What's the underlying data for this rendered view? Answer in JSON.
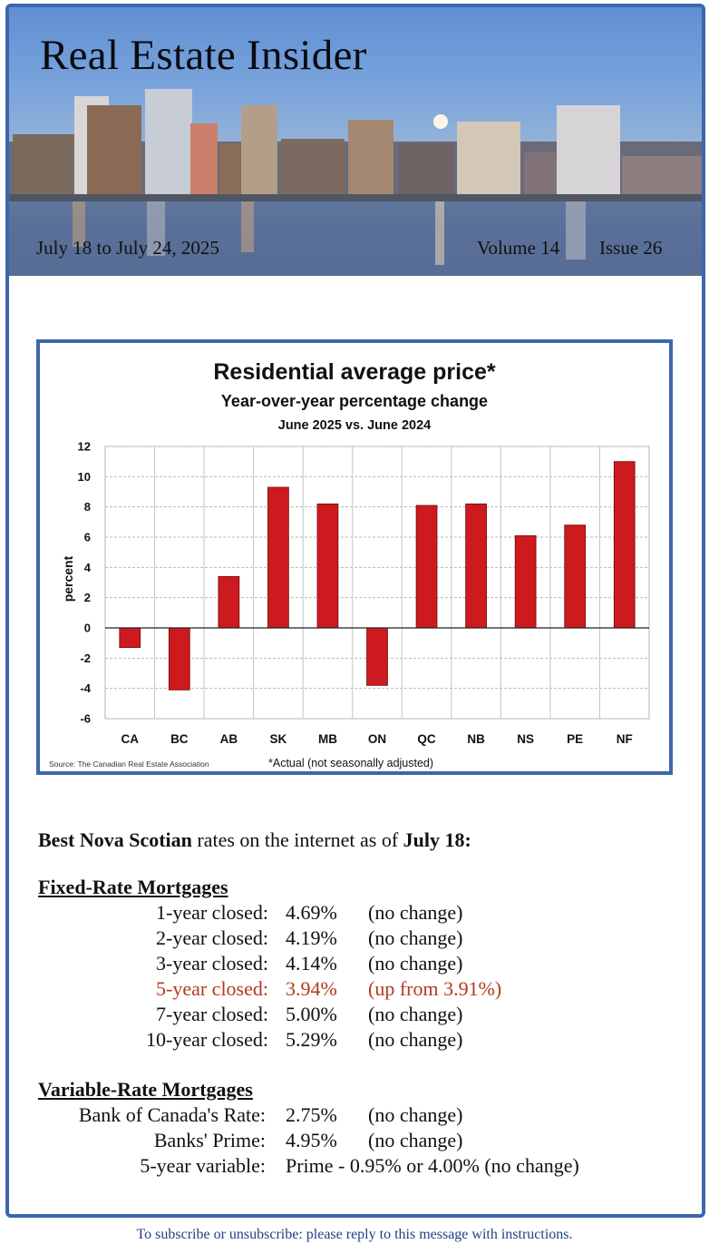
{
  "header": {
    "title": "Real Estate Insider",
    "date_range": "July 18 to July 24, 2025",
    "volume": "Volume 14",
    "issue": "Issue 26"
  },
  "chart_data": {
    "type": "bar",
    "title": "Residential average price*",
    "subtitle": "Year-over-year percentage change",
    "subtitle2": "June 2025 vs. June 2024",
    "ylabel": "percent",
    "source": "Source: The Canadian Real Estate Association",
    "footnote": "*Actual (not seasonally adjusted)",
    "categories": [
      "CA",
      "BC",
      "AB",
      "SK",
      "MB",
      "ON",
      "QC",
      "NB",
      "NS",
      "PE",
      "NF"
    ],
    "values": [
      -1.3,
      -4.1,
      3.4,
      9.3,
      8.2,
      -3.8,
      8.1,
      8.2,
      6.1,
      6.8,
      11.0
    ],
    "ylim": [
      -6,
      12
    ],
    "yticks": [
      "12",
      "10",
      "8",
      "6",
      "4",
      "2",
      "0",
      "-2",
      "-4",
      "-6"
    ],
    "bar_color": "#cc1a1f",
    "grid": true,
    "legend": "none"
  },
  "rates": {
    "intro_bold1": "Best Nova Scotian",
    "intro_mid": " rates on the internet as of ",
    "intro_bold2": "July 18:",
    "fixed_heading": "Fixed-Rate Mortgages",
    "fixed": [
      {
        "label": "1-year closed:",
        "rate": "4.69%",
        "change": "(no change)"
      },
      {
        "label": "2-year closed:",
        "rate": "4.19%",
        "change": "(no change)"
      },
      {
        "label": "3-year closed:",
        "rate": "4.14%",
        "change": "(no change)"
      },
      {
        "label": "5-year closed:",
        "rate": "3.94%",
        "change": "(up from 3.91%)"
      },
      {
        "label": "7-year closed:",
        "rate": "5.00%",
        "change": "(no change)"
      },
      {
        "label": "10-year closed:",
        "rate": "5.29%",
        "change": "(no change)"
      }
    ],
    "variable_heading": "Variable-Rate Mortgages",
    "variable": [
      {
        "label": "Bank of Canada's Rate:",
        "rate": "2.75%",
        "change": "(no change)"
      },
      {
        "label": "Banks' Prime:",
        "rate": "4.95%",
        "change": "(no change)"
      },
      {
        "label": "5-year variable:",
        "rate": "Prime - 0.95% or 4.00% (no change)",
        "change": ""
      }
    ]
  },
  "footer": {
    "text": "To subscribe or unsubscribe: please reply to this message with instructions."
  },
  "colors": {
    "frame": "#3d66ab",
    "highlight": "#b5391e",
    "footer_text": "#1f3f86"
  }
}
